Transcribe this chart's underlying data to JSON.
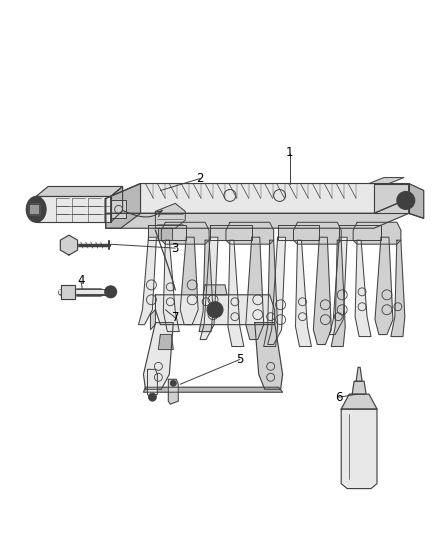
{
  "bg_color": "#ffffff",
  "line_color": "#404040",
  "fill_light": "#e8e8e8",
  "fill_mid": "#d0d0d0",
  "fill_dark": "#b8b8b8",
  "label_color": "#000000",
  "figsize": [
    4.38,
    5.33
  ],
  "dpi": 100,
  "label_fontsize": 8.5
}
